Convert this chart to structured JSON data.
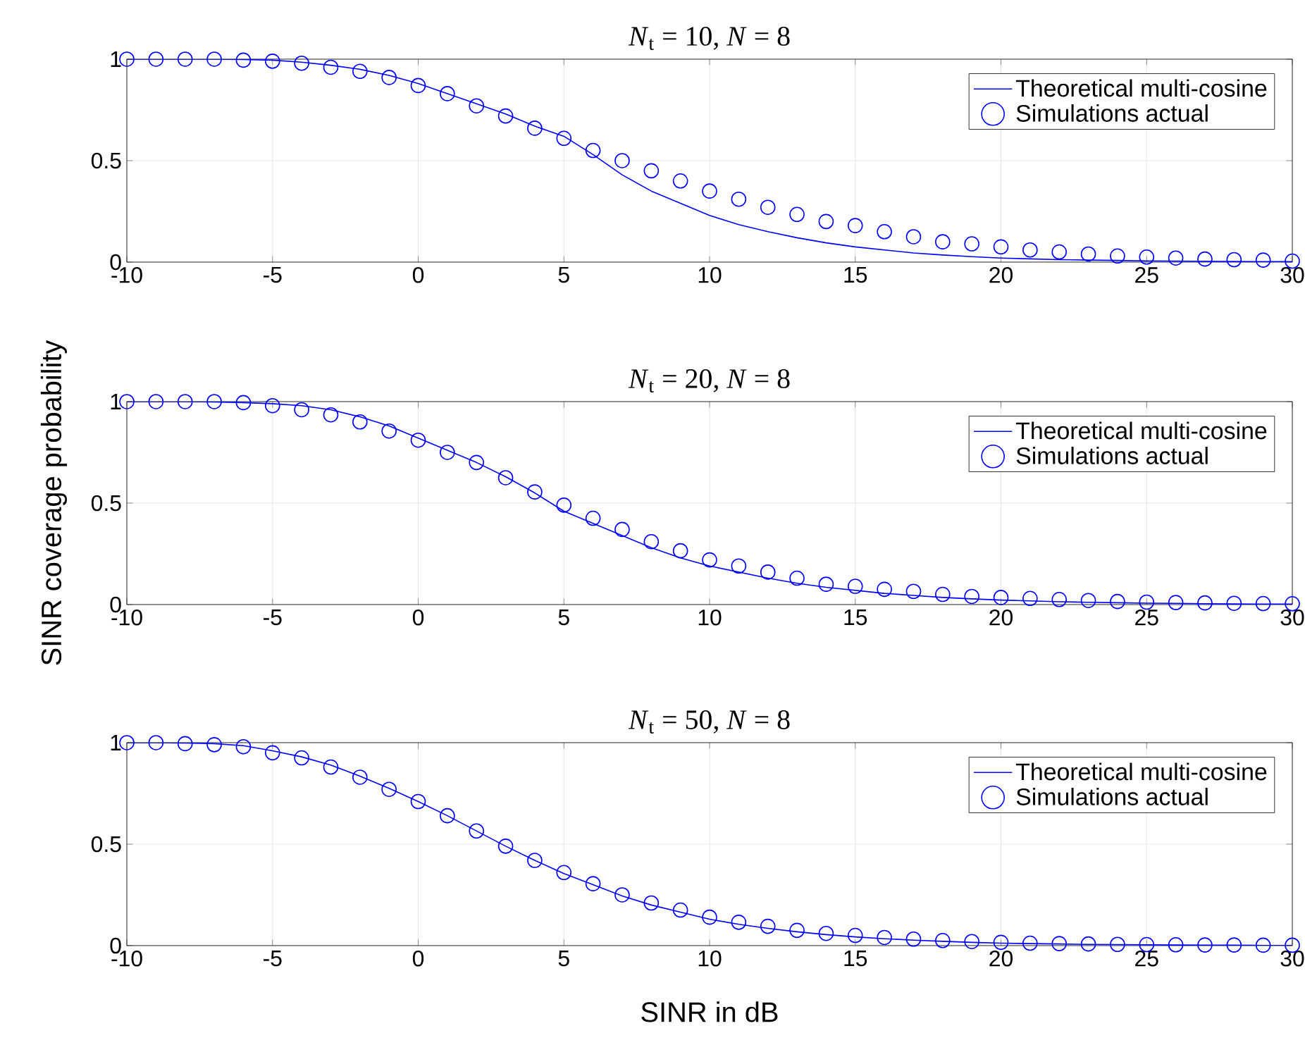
{
  "chart_data": [
    {
      "type": "line",
      "title": "*N*$_{t}$ = 10, *N* = 8",
      "x": [
        -10,
        -9,
        -8,
        -7,
        -6,
        -5,
        -4,
        -3,
        -2,
        -1,
        0,
        1,
        2,
        3,
        4,
        5,
        6,
        7,
        8,
        9,
        10,
        11,
        12,
        13,
        14,
        15,
        16,
        17,
        18,
        19,
        20,
        21,
        22,
        23,
        24,
        25,
        26,
        27,
        28,
        29,
        30
      ],
      "xlim": [
        -10,
        30
      ],
      "ylim": [
        0,
        1
      ],
      "xticks": [
        -10,
        -5,
        0,
        5,
        10,
        15,
        20,
        25,
        30
      ],
      "yticks": [
        0,
        0.5,
        1
      ],
      "grid": true,
      "legend": "top right",
      "series": [
        {
          "name": "Theoretical multi-cosine",
          "type": "line",
          "marker": "none",
          "color": "#0000ff",
          "values": [
            1,
            1,
            1,
            1,
            0.998,
            0.995,
            0.985,
            0.97,
            0.95,
            0.92,
            0.88,
            0.83,
            0.78,
            0.73,
            0.67,
            0.62,
            0.53,
            0.43,
            0.35,
            0.29,
            0.23,
            0.185,
            0.15,
            0.12,
            0.095,
            0.075,
            0.06,
            0.045,
            0.035,
            0.027,
            0.02,
            0.016,
            0.012,
            0.01,
            0.008,
            0.006,
            0.005,
            0.004,
            0.003,
            0.002,
            0.002
          ]
        },
        {
          "name": "Simulations actual",
          "type": "scatter",
          "marker": "circle",
          "color": "#0000ff",
          "values": [
            1,
            1,
            1,
            1,
            0.995,
            0.99,
            0.98,
            0.96,
            0.94,
            0.91,
            0.87,
            0.83,
            0.77,
            0.72,
            0.66,
            0.61,
            0.55,
            0.5,
            0.45,
            0.4,
            0.35,
            0.31,
            0.27,
            0.235,
            0.2,
            0.18,
            0.15,
            0.125,
            0.1,
            0.09,
            0.075,
            0.06,
            0.05,
            0.04,
            0.03,
            0.025,
            0.02,
            0.015,
            0.012,
            0.01,
            0.005
          ]
        }
      ]
    },
    {
      "type": "line",
      "title": "*N*$_{t}$ = 20, *N* = 8",
      "ylabel": "SINR coverage probability",
      "x": [
        -10,
        -9,
        -8,
        -7,
        -6,
        -5,
        -4,
        -3,
        -2,
        -1,
        0,
        1,
        2,
        3,
        4,
        5,
        6,
        7,
        8,
        9,
        10,
        11,
        12,
        13,
        14,
        15,
        16,
        17,
        18,
        19,
        20,
        21,
        22,
        23,
        24,
        25,
        26,
        27,
        28,
        29,
        30
      ],
      "xlim": [
        -10,
        30
      ],
      "ylim": [
        0,
        1
      ],
      "xticks": [
        -10,
        -5,
        0,
        5,
        10,
        15,
        20,
        25,
        30
      ],
      "yticks": [
        0,
        0.5,
        1
      ],
      "grid": true,
      "legend": "top right",
      "series": [
        {
          "name": "Theoretical multi-cosine",
          "type": "line",
          "marker": "none",
          "color": "#0000ff",
          "values": [
            1,
            1,
            1,
            0.998,
            0.995,
            0.99,
            0.98,
            0.96,
            0.925,
            0.88,
            0.82,
            0.76,
            0.7,
            0.63,
            0.55,
            0.46,
            0.4,
            0.34,
            0.28,
            0.23,
            0.19,
            0.16,
            0.13,
            0.105,
            0.085,
            0.07,
            0.055,
            0.045,
            0.035,
            0.028,
            0.022,
            0.018,
            0.014,
            0.011,
            0.009,
            0.007,
            0.006,
            0.004,
            0.003,
            0.002,
            0.002
          ]
        },
        {
          "name": "Simulations actual",
          "type": "scatter",
          "marker": "circle",
          "color": "#0000ff",
          "values": [
            1,
            1,
            1,
            1,
            0.995,
            0.98,
            0.96,
            0.935,
            0.9,
            0.855,
            0.81,
            0.75,
            0.7,
            0.625,
            0.555,
            0.49,
            0.425,
            0.37,
            0.31,
            0.265,
            0.22,
            0.19,
            0.16,
            0.13,
            0.1,
            0.09,
            0.075,
            0.065,
            0.05,
            0.04,
            0.035,
            0.03,
            0.025,
            0.02,
            0.015,
            0.012,
            0.01,
            0.008,
            0.006,
            0.005,
            0.004
          ]
        }
      ]
    },
    {
      "type": "line",
      "title": "*N*$_{t}$ = 50, *N* = 8",
      "xlabel": "SINR in dB",
      "x": [
        -10,
        -9,
        -8,
        -7,
        -6,
        -5,
        -4,
        -3,
        -2,
        -1,
        0,
        1,
        2,
        3,
        4,
        5,
        6,
        7,
        8,
        9,
        10,
        11,
        12,
        13,
        14,
        15,
        16,
        17,
        18,
        19,
        20,
        21,
        22,
        23,
        24,
        25,
        26,
        27,
        28,
        29,
        30
      ],
      "xlim": [
        -10,
        30
      ],
      "ylim": [
        0,
        1
      ],
      "xticks": [
        -10,
        -5,
        0,
        5,
        10,
        15,
        20,
        25,
        30
      ],
      "yticks": [
        0,
        0.5,
        1
      ],
      "grid": true,
      "legend": "top right",
      "series": [
        {
          "name": "Theoretical multi-cosine",
          "type": "line",
          "marker": "none",
          "color": "#0000ff",
          "values": [
            1,
            1,
            0.998,
            0.995,
            0.985,
            0.96,
            0.93,
            0.89,
            0.835,
            0.775,
            0.71,
            0.64,
            0.565,
            0.49,
            0.42,
            0.355,
            0.3,
            0.245,
            0.2,
            0.165,
            0.13,
            0.105,
            0.085,
            0.068,
            0.054,
            0.043,
            0.034,
            0.027,
            0.021,
            0.016,
            0.012,
            0.01,
            0.008,
            0.006,
            0.005,
            0.004,
            0.003,
            0.002,
            0.002,
            0.001,
            0.001
          ]
        },
        {
          "name": "Simulations actual",
          "type": "scatter",
          "marker": "circle",
          "color": "#0000ff",
          "values": [
            1,
            1,
            0.995,
            0.99,
            0.98,
            0.95,
            0.925,
            0.88,
            0.83,
            0.77,
            0.71,
            0.64,
            0.565,
            0.49,
            0.42,
            0.36,
            0.305,
            0.25,
            0.21,
            0.175,
            0.14,
            0.115,
            0.095,
            0.075,
            0.06,
            0.05,
            0.04,
            0.032,
            0.025,
            0.02,
            0.016,
            0.012,
            0.01,
            0.008,
            0.006,
            0.005,
            0.004,
            0.003,
            0.003,
            0.002,
            0.002
          ]
        }
      ]
    }
  ]
}
